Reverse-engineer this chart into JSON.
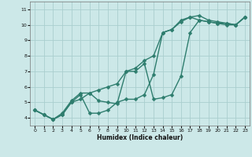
{
  "xlabel": "Humidex (Indice chaleur)",
  "bg_color": "#cce8e8",
  "grid_color": "#aacece",
  "line_color": "#2e7d6e",
  "markersize": 2.5,
  "linewidth": 1.0,
  "xlim": [
    -0.5,
    23.5
  ],
  "ylim": [
    3.5,
    11.5
  ],
  "xticks": [
    0,
    1,
    2,
    3,
    4,
    5,
    6,
    7,
    8,
    9,
    10,
    11,
    12,
    13,
    14,
    15,
    16,
    17,
    18,
    19,
    20,
    21,
    22,
    23
  ],
  "yticks": [
    4,
    5,
    6,
    7,
    8,
    9,
    10,
    11
  ],
  "series1_x": [
    0,
    1,
    2,
    3,
    4,
    5,
    6,
    7,
    8,
    9,
    10,
    11,
    12,
    13,
    14,
    15,
    16,
    17,
    18,
    19,
    20,
    21,
    22,
    23
  ],
  "series1_y": [
    4.5,
    4.2,
    3.9,
    4.2,
    5.0,
    5.2,
    5.6,
    5.8,
    6.0,
    6.2,
    7.0,
    7.2,
    7.7,
    8.0,
    9.5,
    9.7,
    10.2,
    10.5,
    10.6,
    10.3,
    10.2,
    10.1,
    10.0,
    10.5
  ],
  "series2_x": [
    0,
    1,
    2,
    3,
    4,
    5,
    6,
    7,
    8,
    9,
    10,
    11,
    12,
    13,
    14,
    15,
    16,
    17,
    18,
    19,
    20,
    21,
    22,
    23
  ],
  "series2_y": [
    4.5,
    4.2,
    3.9,
    4.2,
    5.0,
    5.5,
    4.3,
    4.3,
    4.5,
    5.0,
    5.2,
    5.2,
    5.5,
    6.8,
    9.5,
    9.7,
    10.3,
    10.5,
    10.3,
    10.2,
    10.1,
    10.0,
    10.0,
    10.5
  ],
  "series3_x": [
    0,
    1,
    2,
    3,
    4,
    5,
    6,
    7,
    8,
    9,
    10,
    11,
    12,
    13,
    14,
    15,
    16,
    17,
    18,
    19,
    20,
    21,
    22,
    23
  ],
  "series3_y": [
    4.5,
    4.2,
    3.9,
    4.3,
    5.1,
    5.6,
    5.6,
    5.1,
    5.0,
    4.9,
    7.0,
    7.0,
    7.5,
    5.2,
    5.3,
    5.5,
    6.7,
    9.5,
    10.3,
    10.2,
    10.1,
    10.1,
    10.0,
    10.5
  ]
}
